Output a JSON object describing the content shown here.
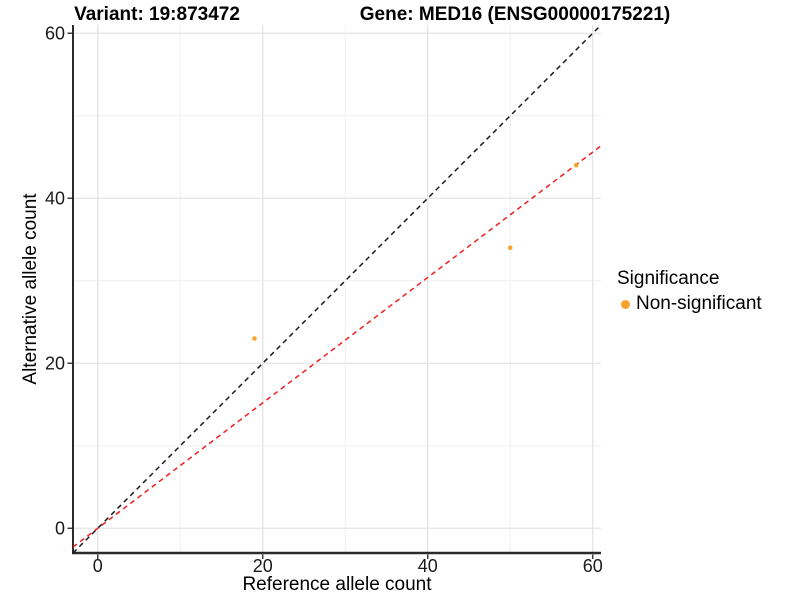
{
  "chart_data": {
    "type": "scatter",
    "titles": {
      "variant": "Variant: 19:873472",
      "gene": "Gene: MED16 (ENSG00000175221)"
    },
    "xlabel": "Reference allele count",
    "ylabel": "Alternative allele count",
    "xlim": [
      -3,
      61
    ],
    "ylim": [
      -3,
      61
    ],
    "xticks": [
      0,
      20,
      40,
      60
    ],
    "yticks": [
      0,
      20,
      40,
      60
    ],
    "xticks_minor": [
      10,
      30,
      50
    ],
    "yticks_minor": [
      10,
      30,
      50
    ],
    "grid": "major and minor gridlines on white background",
    "legend_position": "right",
    "series": [
      {
        "name": "Non-significant",
        "color": "#F9A22B",
        "points": [
          {
            "x": 19,
            "y": 23
          },
          {
            "x": 50,
            "y": 34
          },
          {
            "x": 58,
            "y": 44
          }
        ]
      }
    ],
    "ref_lines": [
      {
        "name": "identity-line",
        "slope": 1,
        "intercept": 0,
        "color": "#1A1A1A",
        "style": "dashed"
      },
      {
        "name": "fit-line",
        "slope": 0.76,
        "intercept": 0,
        "color": "#F01E1E",
        "style": "dashed"
      }
    ]
  },
  "legend": {
    "title": "Significance",
    "items": [
      {
        "label": "Non-significant",
        "color": "#F9A22B"
      }
    ]
  },
  "style_colors": {
    "grid_major": "#E4E4E4",
    "grid_minor": "#F2F2F2",
    "axis_line": "#2B2B2B",
    "tick_mark": "#333333",
    "tick_label": "#1A1A1A"
  }
}
